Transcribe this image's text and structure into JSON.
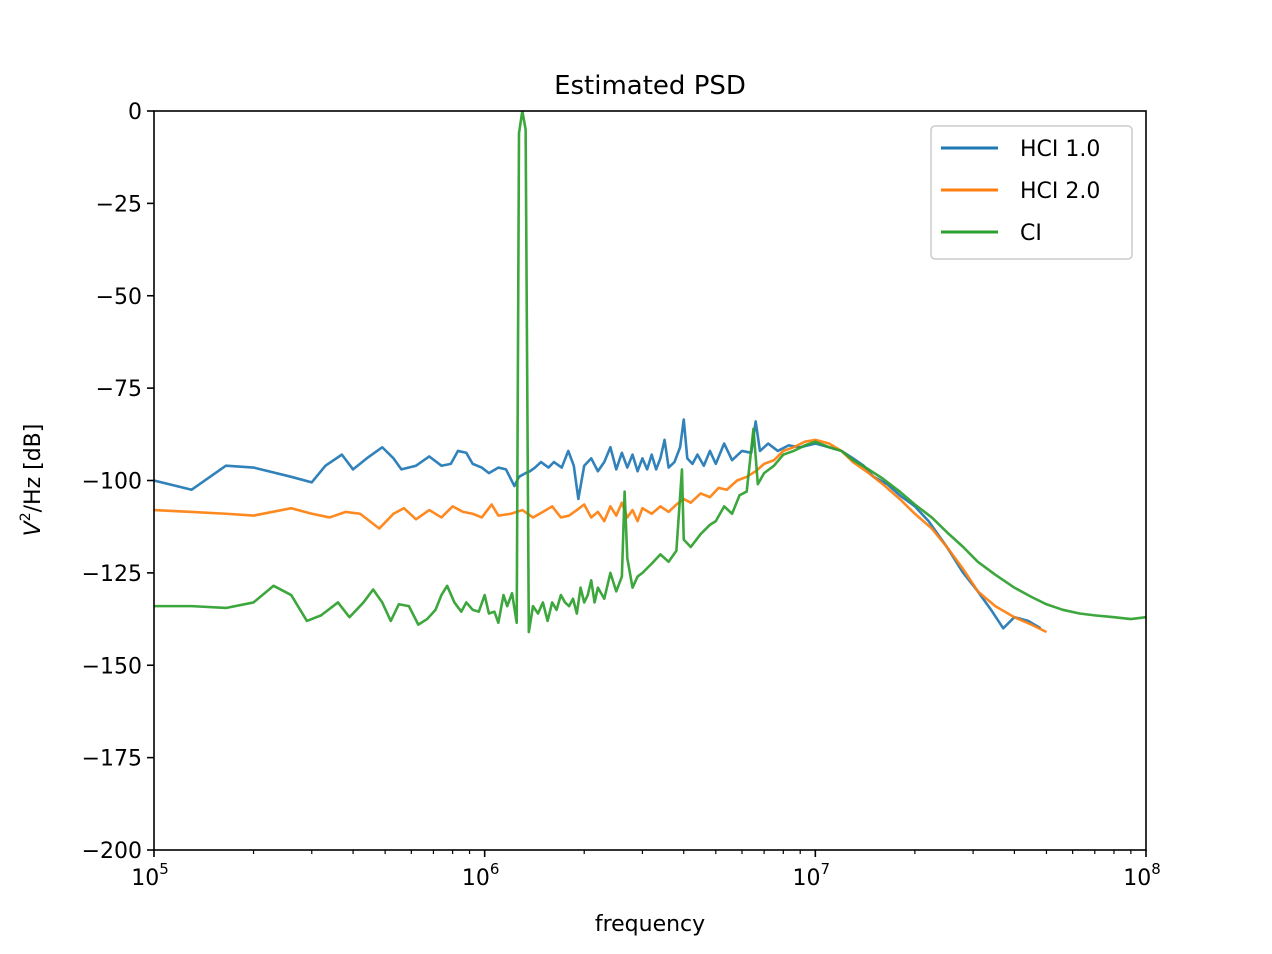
{
  "chart_data": {
    "type": "line",
    "title": "Estimated PSD",
    "xlabel": "frequency",
    "ylabel_base": "V",
    "ylabel_sup": "2",
    "ylabel_rest": "/Hz [dB]",
    "xscale": "log",
    "xlim": [
      100000,
      100000000
    ],
    "ylim": [
      -200,
      0
    ],
    "grid": false,
    "legend_position": "top-right",
    "x_ticks": [
      {
        "value": 100000,
        "base": "10",
        "exp": "5"
      },
      {
        "value": 1000000,
        "base": "10",
        "exp": "6"
      },
      {
        "value": 10000000,
        "base": "10",
        "exp": "7"
      },
      {
        "value": 100000000,
        "base": "10",
        "exp": "8"
      }
    ],
    "y_ticks": [
      {
        "value": 0,
        "label": "0"
      },
      {
        "value": -25,
        "label": "−25"
      },
      {
        "value": -50,
        "label": "−50"
      },
      {
        "value": -75,
        "label": "−75"
      },
      {
        "value": -100,
        "label": "−100"
      },
      {
        "value": -125,
        "label": "−125"
      },
      {
        "value": -150,
        "label": "−150"
      },
      {
        "value": -175,
        "label": "−175"
      },
      {
        "value": -200,
        "label": "−200"
      }
    ],
    "series": [
      {
        "name": "HCI 1.0",
        "color": "#1f77b4",
        "points": [
          [
            100000,
            -100
          ],
          [
            130000,
            -102.5
          ],
          [
            165000,
            -96
          ],
          [
            200000,
            -96.5
          ],
          [
            260000,
            -99
          ],
          [
            300000,
            -100.5
          ],
          [
            330000,
            -96
          ],
          [
            370000,
            -93
          ],
          [
            400000,
            -97
          ],
          [
            440000,
            -94
          ],
          [
            490000,
            -91
          ],
          [
            530000,
            -94
          ],
          [
            560000,
            -97
          ],
          [
            620000,
            -96
          ],
          [
            680000,
            -93.5
          ],
          [
            740000,
            -96
          ],
          [
            790000,
            -95.5
          ],
          [
            830000,
            -92
          ],
          [
            880000,
            -92.5
          ],
          [
            920000,
            -95.5
          ],
          [
            980000,
            -96.5
          ],
          [
            1030000,
            -98
          ],
          [
            1100000,
            -96.5
          ],
          [
            1160000,
            -97
          ],
          [
            1230000,
            -101.5
          ],
          [
            1270000,
            -99
          ],
          [
            1330000,
            -98
          ],
          [
            1370000,
            -97.5
          ],
          [
            1420000,
            -96.5
          ],
          [
            1480000,
            -95
          ],
          [
            1560000,
            -96.5
          ],
          [
            1620000,
            -95
          ],
          [
            1710000,
            -96.5
          ],
          [
            1790000,
            -92
          ],
          [
            1860000,
            -96
          ],
          [
            1920000,
            -105
          ],
          [
            2000000,
            -96
          ],
          [
            2100000,
            -94
          ],
          [
            2200000,
            -97.5
          ],
          [
            2300000,
            -95
          ],
          [
            2400000,
            -91
          ],
          [
            2500000,
            -97
          ],
          [
            2600000,
            -92.5
          ],
          [
            2700000,
            -96.5
          ],
          [
            2800000,
            -93
          ],
          [
            2900000,
            -97.5
          ],
          [
            3000000,
            -94
          ],
          [
            3100000,
            -97
          ],
          [
            3200000,
            -93
          ],
          [
            3300000,
            -97
          ],
          [
            3400000,
            -94
          ],
          [
            3500000,
            -89
          ],
          [
            3600000,
            -96.5
          ],
          [
            3750000,
            -95
          ],
          [
            3900000,
            -91
          ],
          [
            4000000,
            -83.5
          ],
          [
            4100000,
            -94
          ],
          [
            4250000,
            -95.5
          ],
          [
            4400000,
            -93
          ],
          [
            4600000,
            -96
          ],
          [
            4800000,
            -92
          ],
          [
            5000000,
            -95.5
          ],
          [
            5300000,
            -90
          ],
          [
            5600000,
            -94.5
          ],
          [
            6000000,
            -92
          ],
          [
            6400000,
            -92.5
          ],
          [
            6600000,
            -84
          ],
          [
            6800000,
            -92
          ],
          [
            7200000,
            -90
          ],
          [
            7700000,
            -92
          ],
          [
            8300000,
            -90.5
          ],
          [
            9000000,
            -91
          ],
          [
            10000000,
            -90
          ],
          [
            11000000,
            -91
          ],
          [
            12000000,
            -92
          ],
          [
            13000000,
            -94
          ],
          [
            14000000,
            -96
          ],
          [
            15000000,
            -99
          ],
          [
            16500000,
            -101
          ],
          [
            18000000,
            -104
          ],
          [
            20000000,
            -107
          ],
          [
            22000000,
            -111
          ],
          [
            25000000,
            -118
          ],
          [
            28000000,
            -125
          ],
          [
            31000000,
            -130
          ],
          [
            34000000,
            -135
          ],
          [
            37000000,
            -140
          ],
          [
            40000000,
            -137
          ],
          [
            44000000,
            -138
          ],
          [
            48000000,
            -140
          ]
        ]
      },
      {
        "name": "HCI 2.0",
        "color": "#ff7f0e",
        "points": [
          [
            100000,
            -108
          ],
          [
            130000,
            -108.5
          ],
          [
            165000,
            -109
          ],
          [
            200000,
            -109.5
          ],
          [
            260000,
            -107.5
          ],
          [
            300000,
            -109
          ],
          [
            340000,
            -110
          ],
          [
            380000,
            -108.5
          ],
          [
            420000,
            -109
          ],
          [
            480000,
            -113
          ],
          [
            530000,
            -109
          ],
          [
            570000,
            -107.5
          ],
          [
            620000,
            -110.5
          ],
          [
            680000,
            -108
          ],
          [
            740000,
            -110
          ],
          [
            800000,
            -107
          ],
          [
            860000,
            -108.5
          ],
          [
            920000,
            -109
          ],
          [
            980000,
            -110
          ],
          [
            1050000,
            -106.5
          ],
          [
            1100000,
            -109.5
          ],
          [
            1200000,
            -109
          ],
          [
            1300000,
            -108
          ],
          [
            1400000,
            -110
          ],
          [
            1500000,
            -108.5
          ],
          [
            1600000,
            -107
          ],
          [
            1700000,
            -110
          ],
          [
            1800000,
            -109.5
          ],
          [
            1900000,
            -108
          ],
          [
            2000000,
            -106.5
          ],
          [
            2100000,
            -110
          ],
          [
            2200000,
            -108.5
          ],
          [
            2300000,
            -111
          ],
          [
            2400000,
            -107
          ],
          [
            2500000,
            -109.5
          ],
          [
            2600000,
            -106
          ],
          [
            2700000,
            -110
          ],
          [
            2800000,
            -108
          ],
          [
            2900000,
            -111
          ],
          [
            3000000,
            -107.5
          ],
          [
            3200000,
            -109
          ],
          [
            3400000,
            -107
          ],
          [
            3600000,
            -108.5
          ],
          [
            3800000,
            -106.5
          ],
          [
            4000000,
            -105
          ],
          [
            4200000,
            -106
          ],
          [
            4500000,
            -103.5
          ],
          [
            4800000,
            -104.5
          ],
          [
            5100000,
            -102
          ],
          [
            5400000,
            -102.5
          ],
          [
            5800000,
            -100
          ],
          [
            6200000,
            -99
          ],
          [
            6600000,
            -97.5
          ],
          [
            7000000,
            -95.5
          ],
          [
            7500000,
            -94.5
          ],
          [
            8000000,
            -92
          ],
          [
            8600000,
            -91
          ],
          [
            9300000,
            -89.5
          ],
          [
            10000000,
            -89
          ],
          [
            11000000,
            -90
          ],
          [
            12000000,
            -92
          ],
          [
            13000000,
            -95
          ],
          [
            14500000,
            -98
          ],
          [
            16000000,
            -101
          ],
          [
            18000000,
            -105
          ],
          [
            20000000,
            -109
          ],
          [
            22500000,
            -113
          ],
          [
            25000000,
            -118
          ],
          [
            28000000,
            -124
          ],
          [
            31000000,
            -130
          ],
          [
            35000000,
            -134
          ],
          [
            40000000,
            -137
          ],
          [
            45000000,
            -139
          ],
          [
            50000000,
            -141
          ]
        ]
      },
      {
        "name": "CI",
        "color": "#2ca02c",
        "points": [
          [
            100000,
            -134
          ],
          [
            130000,
            -134
          ],
          [
            165000,
            -134.5
          ],
          [
            200000,
            -133
          ],
          [
            230000,
            -128.5
          ],
          [
            260000,
            -131
          ],
          [
            290000,
            -138
          ],
          [
            320000,
            -136.5
          ],
          [
            360000,
            -133
          ],
          [
            390000,
            -137
          ],
          [
            430000,
            -133
          ],
          [
            460000,
            -129.5
          ],
          [
            490000,
            -133
          ],
          [
            520000,
            -138
          ],
          [
            550000,
            -133.5
          ],
          [
            590000,
            -134
          ],
          [
            630000,
            -139
          ],
          [
            670000,
            -137.5
          ],
          [
            710000,
            -135
          ],
          [
            740000,
            -131
          ],
          [
            770000,
            -128.5
          ],
          [
            810000,
            -133
          ],
          [
            850000,
            -135.5
          ],
          [
            880000,
            -133
          ],
          [
            920000,
            -135
          ],
          [
            960000,
            -135.5
          ],
          [
            1000000,
            -131
          ],
          [
            1030000,
            -136
          ],
          [
            1070000,
            -135.5
          ],
          [
            1100000,
            -138.5
          ],
          [
            1140000,
            -131
          ],
          [
            1170000,
            -134
          ],
          [
            1210000,
            -130.5
          ],
          [
            1250000,
            -138.5
          ],
          [
            1270000,
            -6
          ],
          [
            1300000,
            0
          ],
          [
            1330000,
            -5
          ],
          [
            1360000,
            -141
          ],
          [
            1400000,
            -134
          ],
          [
            1450000,
            -136
          ],
          [
            1500000,
            -133
          ],
          [
            1550000,
            -138
          ],
          [
            1600000,
            -133
          ],
          [
            1650000,
            -135
          ],
          [
            1700000,
            -131
          ],
          [
            1750000,
            -133
          ],
          [
            1800000,
            -134
          ],
          [
            1850000,
            -132
          ],
          [
            1900000,
            -136
          ],
          [
            1950000,
            -129
          ],
          [
            2000000,
            -133
          ],
          [
            2050000,
            -131
          ],
          [
            2100000,
            -127
          ],
          [
            2150000,
            -133
          ],
          [
            2200000,
            -129
          ],
          [
            2300000,
            -132
          ],
          [
            2400000,
            -125
          ],
          [
            2500000,
            -130
          ],
          [
            2600000,
            -126
          ],
          [
            2650000,
            -103
          ],
          [
            2700000,
            -121
          ],
          [
            2800000,
            -129
          ],
          [
            2900000,
            -126
          ],
          [
            3000000,
            -125
          ],
          [
            3200000,
            -122.5
          ],
          [
            3400000,
            -120
          ],
          [
            3600000,
            -122
          ],
          [
            3800000,
            -119
          ],
          [
            3950000,
            -97
          ],
          [
            4000000,
            -116
          ],
          [
            4200000,
            -118
          ],
          [
            4500000,
            -114.5
          ],
          [
            4800000,
            -112
          ],
          [
            5000000,
            -111
          ],
          [
            5300000,
            -107
          ],
          [
            5600000,
            -109
          ],
          [
            5900000,
            -104
          ],
          [
            6200000,
            -103
          ],
          [
            6500000,
            -86
          ],
          [
            6700000,
            -101
          ],
          [
            7000000,
            -98
          ],
          [
            7500000,
            -96
          ],
          [
            8000000,
            -93
          ],
          [
            8600000,
            -92
          ],
          [
            9300000,
            -90.5
          ],
          [
            10000000,
            -89.5
          ],
          [
            11000000,
            -91
          ],
          [
            12000000,
            -92
          ],
          [
            13000000,
            -94.5
          ],
          [
            14500000,
            -97
          ],
          [
            16000000,
            -99.5
          ],
          [
            18000000,
            -103
          ],
          [
            20000000,
            -106.5
          ],
          [
            22500000,
            -110
          ],
          [
            25000000,
            -114
          ],
          [
            28000000,
            -118
          ],
          [
            31000000,
            -122
          ],
          [
            35000000,
            -125.5
          ],
          [
            40000000,
            -129
          ],
          [
            45000000,
            -131.5
          ],
          [
            50000000,
            -133.5
          ],
          [
            56000000,
            -135
          ],
          [
            63000000,
            -136
          ],
          [
            70000000,
            -136.5
          ],
          [
            80000000,
            -137
          ],
          [
            90000000,
            -137.5
          ],
          [
            100000000,
            -137
          ]
        ]
      }
    ]
  }
}
